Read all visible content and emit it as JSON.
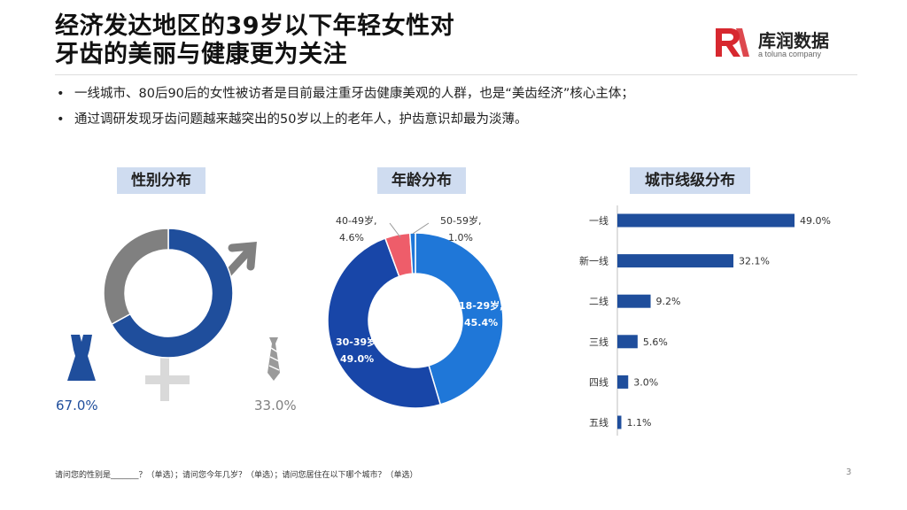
{
  "title": {
    "line1": "经济发达地区的39岁以下年轻女性对",
    "line2": "牙齿的美丽与健康更为关注"
  },
  "brand": {
    "name": "库润数据",
    "tagline": "a toluna company",
    "accent_color": "#d7282f"
  },
  "bullets": [
    "一线城市、80后90后的女性被访者是目前最注重牙齿健康美观的人群，也是“美齿经济”核心主体；",
    "通过调研发现牙齿问题越来越突出的50岁以上的老年人，护齿意识却最为淡薄。"
  ],
  "sections": {
    "gender": "性别分布",
    "age": "年龄分布",
    "city": "城市线级分布"
  },
  "chart_data": [
    {
      "type": "pie",
      "title": "性别分布",
      "donut": true,
      "slices": [
        {
          "label": "女",
          "value": 67.0,
          "display": "67.0%",
          "color": "#1f4e9c"
        },
        {
          "label": "男",
          "value": 33.0,
          "display": "33.0%",
          "color": "#808080"
        }
      ]
    },
    {
      "type": "pie",
      "title": "年龄分布",
      "donut": true,
      "slices": [
        {
          "label": "18-29岁,",
          "value": 45.4,
          "display": "45.4%",
          "color": "#1f77d8"
        },
        {
          "label": "30-39岁,",
          "value": 49.0,
          "display": "49.0%",
          "color": "#1846a8"
        },
        {
          "label": "40-49岁,",
          "value": 4.6,
          "display": "4.6%",
          "color": "#ee5d6a"
        },
        {
          "label": "50-59岁,",
          "value": 1.0,
          "display": "1.0%",
          "color": "#1f77d8"
        }
      ]
    },
    {
      "type": "bar",
      "orientation": "horizontal",
      "title": "城市线级分布",
      "categories": [
        "一线",
        "新一线",
        "二线",
        "三线",
        "四线",
        "五线"
      ],
      "values": [
        49.0,
        32.1,
        9.2,
        5.6,
        3.0,
        1.1
      ],
      "labels": [
        "49.0%",
        "32.1%",
        "9.2%",
        "5.6%",
        "3.0%",
        "1.1%"
      ],
      "xlim": [
        0,
        49
      ],
      "color": "#1f4e9c"
    }
  ],
  "footnote": "请问您的性别是_______？（单选）；请问您今年几岁？（单选）；请问您居住在以下哪个城市？（单选）",
  "page_number": "3"
}
